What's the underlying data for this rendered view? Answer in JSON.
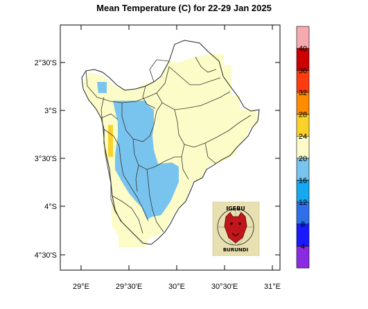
{
  "title": "Mean Temperature (C) for 22-29 Jan 2025",
  "axes": {
    "y_ticks": [
      "2°30'S",
      "3°S",
      "3°30'S",
      "4°S",
      "4°30'S"
    ],
    "x_ticks": [
      "29°E",
      "29°30'E",
      "30°E",
      "30°30'E",
      "31°E"
    ]
  },
  "colorbar": {
    "labels": [
      "4",
      "8",
      "12",
      "16",
      "20",
      "24",
      "28",
      "32",
      "36",
      "40"
    ],
    "colors": [
      "#8a2be2",
      "#1a1aff",
      "#2f6fe8",
      "#16a8f0",
      "#79c4ee",
      "#fcfcc8",
      "#fbd22a",
      "#ff8c00",
      "#ff3c10",
      "#cc0000",
      "#f7a9b0"
    ]
  },
  "logo": {
    "text_top": "IGEBU",
    "text_bottom": "BURUNDI"
  }
}
